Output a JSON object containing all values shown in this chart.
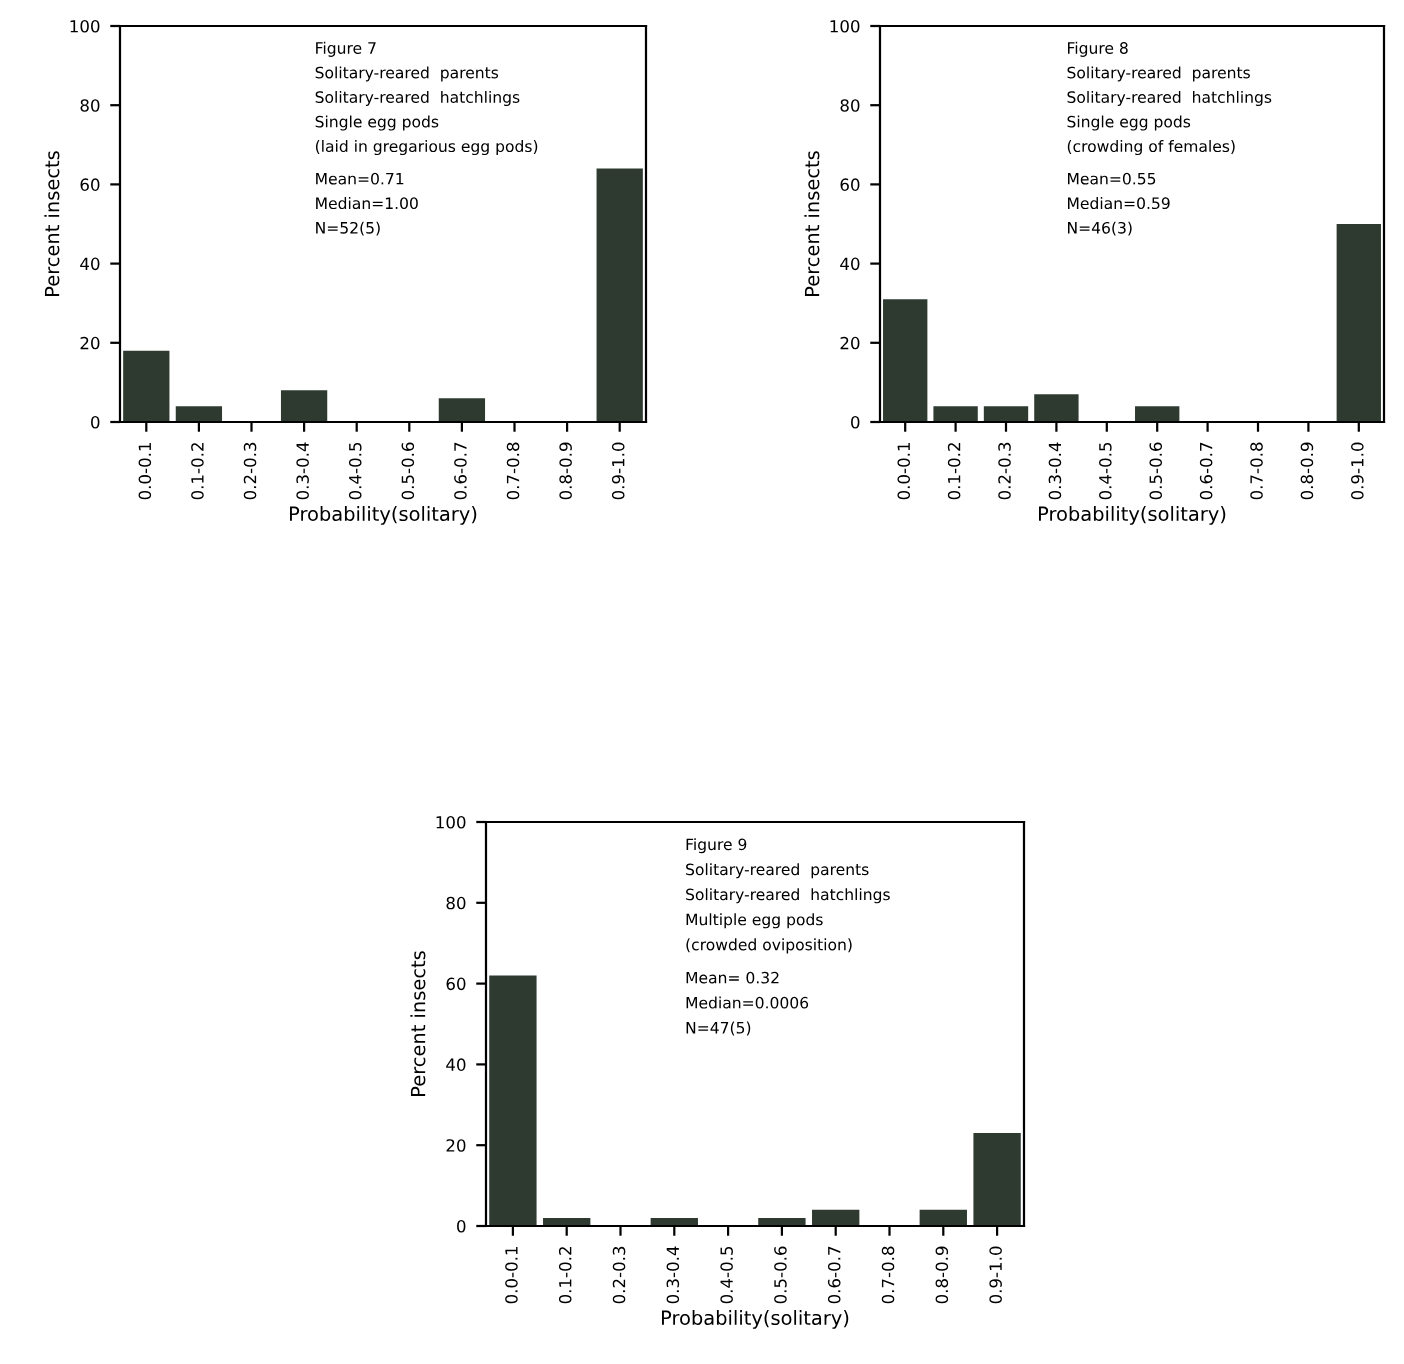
{
  "chart_data": [
    {
      "type": "bar",
      "xlabel": "Probability(solitary)",
      "ylabel": "Percent insects",
      "categories": [
        "0.0-0.1",
        "0.1-0.2",
        "0.2-0.3",
        "0.3-0.4",
        "0.4-0.5",
        "0.5-0.6",
        "0.6-0.7",
        "0.7-0.8",
        "0.8-0.9",
        "0.9-1.0"
      ],
      "values": [
        18,
        4,
        0,
        8,
        0,
        0,
        6,
        0,
        0,
        64
      ],
      "color": "#2e3a30",
      "ylim": [
        0,
        100
      ],
      "yticks": [
        0,
        20,
        40,
        60,
        80,
        100
      ],
      "grid": false,
      "legend": false,
      "annotations": [
        "Figure 7",
        "Solitary-reared  parents",
        "Solitary-reared  hatchlings",
        "Single egg pods",
        "(laid in gregarious egg pods)",
        "Mean=0.71",
        "Median=1.00",
        "N=52(5)"
      ]
    },
    {
      "type": "bar",
      "xlabel": "Probability(solitary)",
      "ylabel": "Percent insects",
      "categories": [
        "0.0-0.1",
        "0.1-0.2",
        "0.2-0.3",
        "0.3-0.4",
        "0.4-0.5",
        "0.5-0.6",
        "0.6-0.7",
        "0.7-0.8",
        "0.8-0.9",
        "0.9-1.0"
      ],
      "values": [
        31,
        4,
        4,
        7,
        0,
        4,
        0,
        0,
        0,
        50
      ],
      "color": "#2e3a30",
      "ylim": [
        0,
        100
      ],
      "yticks": [
        0,
        20,
        40,
        60,
        80,
        100
      ],
      "grid": false,
      "legend": false,
      "annotations": [
        "Figure 8",
        "Solitary-reared  parents",
        "Solitary-reared  hatchlings",
        "Single egg pods",
        "(crowding of females)",
        "Mean=0.55",
        "Median=0.59",
        "N=46(3)"
      ]
    },
    {
      "type": "bar",
      "xlabel": "Probability(solitary)",
      "ylabel": "Percent insects",
      "categories": [
        "0.0-0.1",
        "0.1-0.2",
        "0.2-0.3",
        "0.3-0.4",
        "0.4-0.5",
        "0.5-0.6",
        "0.6-0.7",
        "0.7-0.8",
        "0.8-0.9",
        "0.9-1.0"
      ],
      "values": [
        62,
        2,
        0,
        2,
        0,
        2,
        4,
        0,
        4,
        23
      ],
      "color": "#2e3a30",
      "ylim": [
        0,
        100
      ],
      "yticks": [
        0,
        20,
        40,
        60,
        80,
        100
      ],
      "grid": false,
      "legend": false,
      "annotations": [
        "Figure 9",
        "Solitary-reared  parents",
        "Solitary-reared  hatchlings",
        "Multiple egg pods",
        "(crowded oviposition)",
        "Mean= 0.32",
        "Median=0.0006",
        "N=47(5)"
      ]
    }
  ]
}
